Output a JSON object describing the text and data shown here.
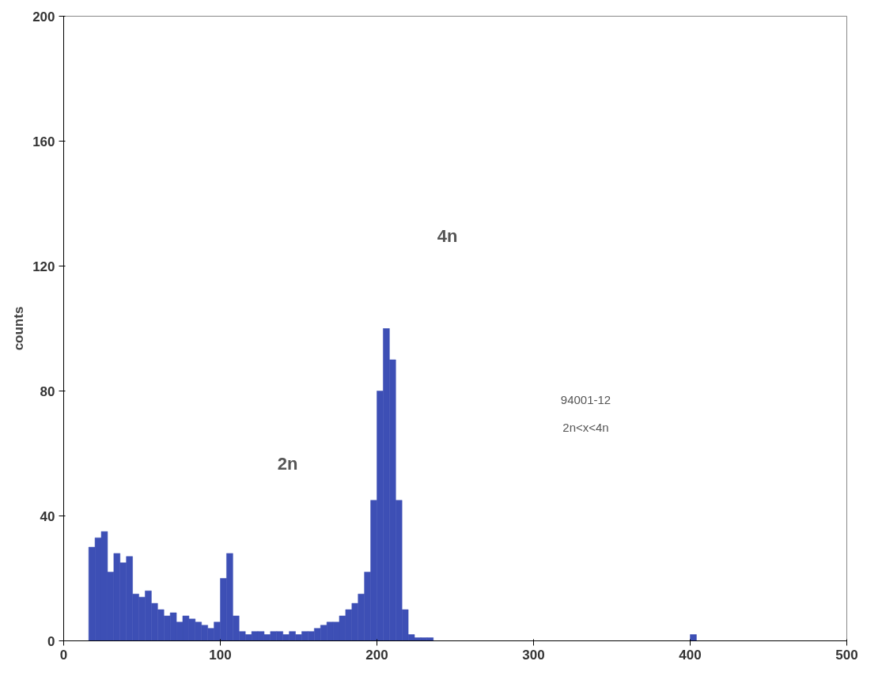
{
  "chart_data": {
    "type": "histogram",
    "ylabel": "counts",
    "color": "#3d4fb5",
    "bins": [
      16,
      20,
      24,
      28,
      32,
      36,
      40,
      44,
      48,
      52,
      56,
      60,
      64,
      68,
      72,
      76,
      80,
      84,
      88,
      92,
      96,
      100,
      104,
      108,
      112,
      116,
      120,
      124,
      128,
      132,
      136,
      140,
      144,
      148,
      152,
      156,
      160,
      164,
      168,
      172,
      176,
      180,
      184,
      188,
      192,
      196,
      200,
      204,
      208,
      212,
      216,
      220,
      224,
      228,
      232,
      236,
      240,
      244,
      248,
      252,
      256,
      260,
      264,
      268,
      272,
      276,
      280,
      284,
      288,
      292,
      296,
      300,
      304,
      308,
      312,
      316,
      320,
      324,
      328,
      332,
      336,
      340,
      344,
      348,
      352,
      356,
      360,
      364,
      368,
      372,
      376,
      380,
      384,
      388,
      392,
      396,
      400,
      404,
      408,
      412,
      416,
      420,
      424,
      428,
      432,
      436,
      440,
      444,
      448,
      452,
      456,
      460,
      464,
      468,
      472,
      476,
      480,
      484,
      488,
      492,
      496,
      500
    ],
    "values": [
      30,
      33,
      35,
      22,
      28,
      25,
      27,
      15,
      14,
      16,
      12,
      10,
      8,
      9,
      6,
      8,
      7,
      6,
      5,
      4,
      6,
      20,
      28,
      8,
      3,
      2,
      3,
      3,
      2,
      3,
      3,
      2,
      3,
      2,
      3,
      3,
      4,
      5,
      6,
      6,
      8,
      10,
      12,
      15,
      22,
      45,
      80,
      100,
      90,
      45,
      10,
      2,
      1,
      1,
      1,
      0,
      0,
      0,
      0,
      0,
      0,
      0,
      0,
      0,
      0,
      0,
      0,
      0,
      0,
      0,
      0,
      0,
      0,
      0,
      0,
      0,
      0,
      0,
      0,
      0,
      0,
      0,
      0,
      0,
      0,
      0,
      0,
      0,
      0,
      0,
      0,
      0,
      0,
      0,
      0,
      0,
      2,
      0,
      0,
      0,
      0,
      0,
      0,
      0,
      0,
      0,
      0,
      0,
      0,
      0,
      0,
      0,
      0,
      0,
      0,
      0,
      0,
      0,
      0,
      0,
      0
    ],
    "xlim": [
      0,
      500
    ],
    "xticks": [
      0,
      100,
      200,
      300,
      400,
      500
    ],
    "ylim": [
      0,
      200
    ],
    "yticks": [
      0,
      40,
      80,
      120,
      160,
      200
    ],
    "annotations": [
      "2n",
      "4n",
      "94001-12",
      "2n<x<4n"
    ]
  }
}
